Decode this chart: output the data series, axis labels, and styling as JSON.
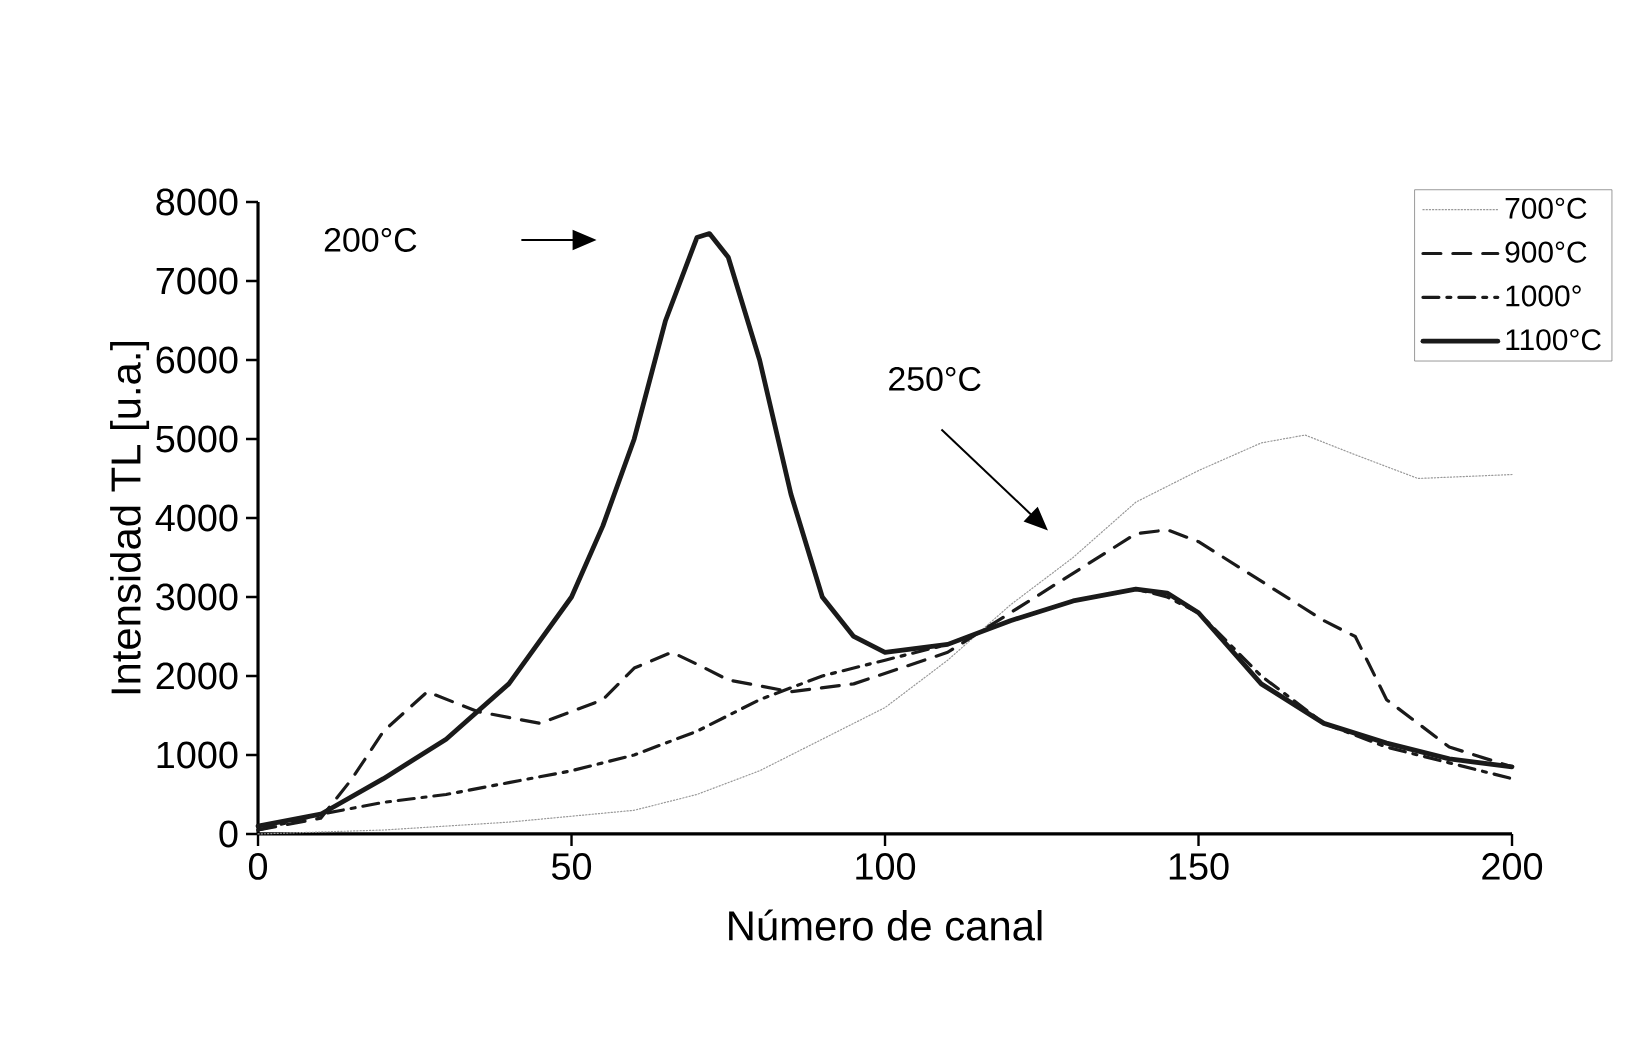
{
  "chart_data": {
    "type": "line",
    "xlabel": "Número de canal",
    "ylabel": "Intensidad TL [u.a.]",
    "xlim": [
      0,
      200
    ],
    "xticks": [
      0,
      50,
      100,
      150,
      200
    ],
    "ylim": [
      0,
      8000
    ],
    "yticks": [
      0,
      1000,
      2000,
      3000,
      4000,
      5000,
      6000,
      7000,
      8000
    ],
    "grid": false,
    "legend": "top right",
    "marker": "none",
    "annotations": [
      "200°C",
      "250°C"
    ],
    "series": [
      {
        "name": "700°C",
        "color": "#999999",
        "line_style": "dotted",
        "x": [
          0,
          20,
          40,
          60,
          70,
          80,
          90,
          100,
          110,
          120,
          130,
          140,
          150,
          160,
          167,
          175,
          185,
          200
        ],
        "values": [
          0,
          50,
          150,
          300,
          500,
          800,
          1200,
          1600,
          2200,
          2900,
          3500,
          4200,
          4600,
          4950,
          5050,
          4800,
          4500,
          4550
        ]
      },
      {
        "name": "900°C",
        "color": "#1a1a1a",
        "line_style": "dashed",
        "x": [
          0,
          10,
          15,
          20,
          27,
          35,
          45,
          55,
          60,
          66,
          70,
          75,
          85,
          95,
          110,
          120,
          130,
          140,
          145,
          150,
          160,
          170,
          175,
          180,
          190,
          200
        ],
        "values": [
          50,
          200,
          700,
          1300,
          1800,
          1550,
          1400,
          1700,
          2100,
          2300,
          2150,
          1950,
          1800,
          1900,
          2300,
          2800,
          3300,
          3800,
          3850,
          3700,
          3200,
          2700,
          2500,
          1700,
          1100,
          850
        ]
      },
      {
        "name": "1000°",
        "color": "#1a1a1a",
        "line_style": "dashdot",
        "x": [
          0,
          10,
          20,
          30,
          40,
          50,
          60,
          70,
          80,
          90,
          100,
          110,
          120,
          130,
          140,
          145,
          150,
          160,
          170,
          180,
          190,
          200
        ],
        "values": [
          50,
          250,
          400,
          500,
          650,
          800,
          1000,
          1300,
          1700,
          2000,
          2200,
          2400,
          2700,
          2950,
          3100,
          3000,
          2800,
          2000,
          1400,
          1100,
          900,
          700
        ]
      },
      {
        "name": "1100°C",
        "color": "#1a1a1a",
        "line_style": "solid",
        "x": [
          0,
          10,
          20,
          30,
          40,
          50,
          55,
          60,
          65,
          70,
          72,
          75,
          80,
          85,
          90,
          95,
          100,
          110,
          120,
          130,
          140,
          145,
          150,
          160,
          170,
          180,
          190,
          200
        ],
        "values": [
          100,
          250,
          700,
          1200,
          1900,
          3000,
          3900,
          5000,
          6500,
          7550,
          7600,
          7300,
          6000,
          4300,
          3000,
          2500,
          2300,
          2400,
          2700,
          2950,
          3100,
          3050,
          2800,
          1900,
          1400,
          1150,
          950,
          850
        ]
      }
    ]
  }
}
